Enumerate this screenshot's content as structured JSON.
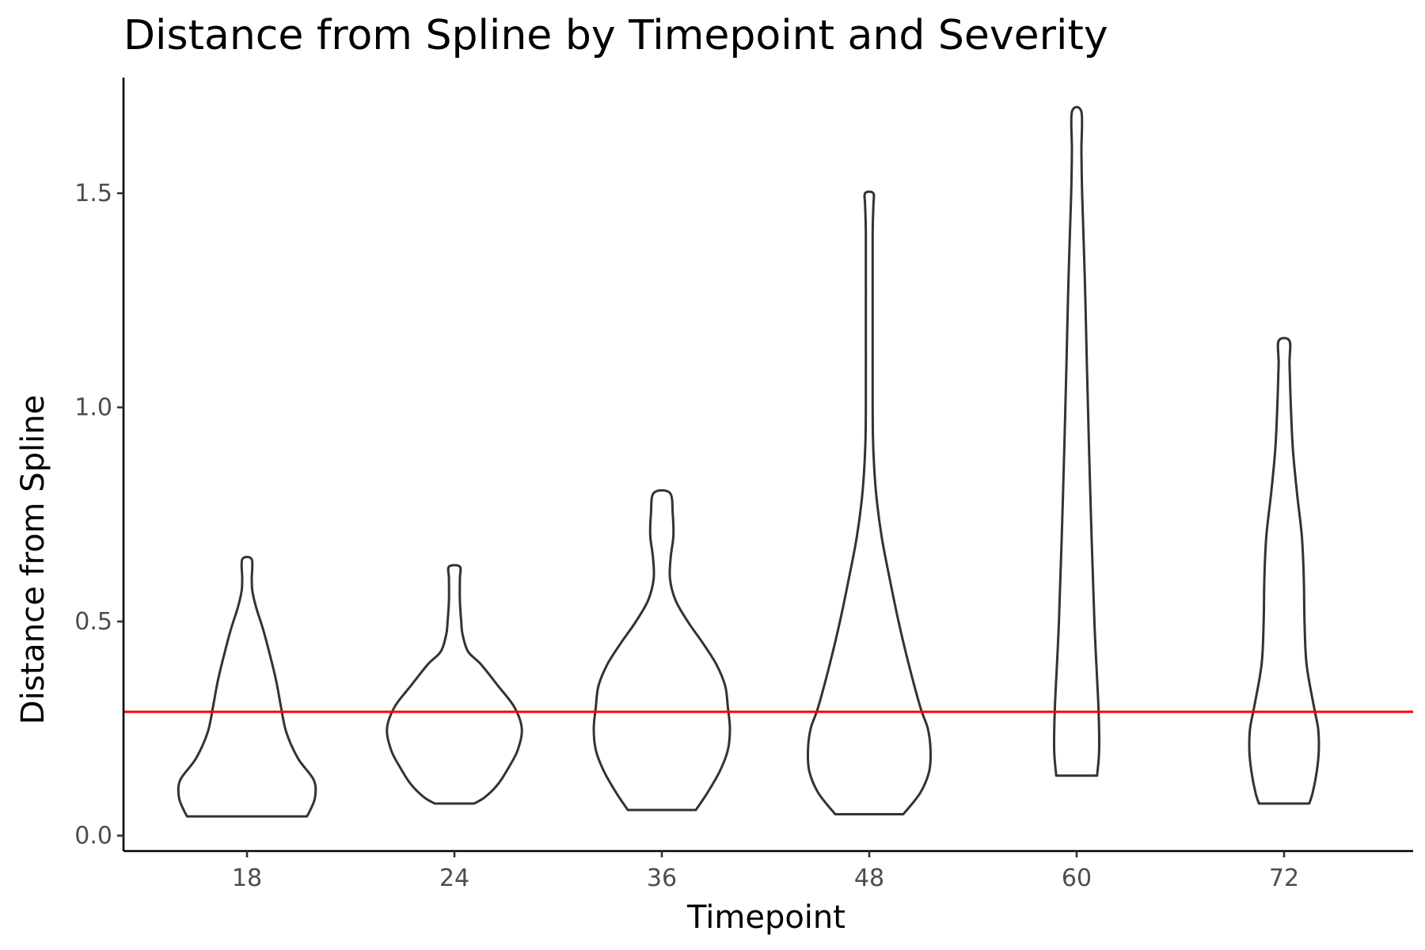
{
  "chart_data": {
    "type": "violin",
    "title": "Distance from Spline by Timepoint and Severity",
    "xlabel": "Timepoint",
    "ylabel": "Distance from Spline",
    "categories": [
      "18",
      "24",
      "36",
      "48",
      "60",
      "72"
    ],
    "yticks": [
      0.0,
      0.5,
      1.0,
      1.5
    ],
    "ytick_labels": [
      "0.0",
      "0.5",
      "1.0",
      "1.5"
    ],
    "ylim": [
      -0.036,
      1.77
    ],
    "grid": false,
    "legend": "none",
    "reference_line": {
      "y": 0.289,
      "color": "#ff0000"
    },
    "violin_color": "#333333",
    "violins": [
      {
        "category": "18",
        "min": 0.045,
        "max": 0.645,
        "profile": [
          [
            0.045,
            0.88
          ],
          [
            0.06,
            0.93
          ],
          [
            0.09,
            1.0
          ],
          [
            0.13,
            0.98
          ],
          [
            0.18,
            0.75
          ],
          [
            0.24,
            0.58
          ],
          [
            0.3,
            0.5
          ],
          [
            0.36,
            0.43
          ],
          [
            0.42,
            0.34
          ],
          [
            0.48,
            0.24
          ],
          [
            0.53,
            0.14
          ],
          [
            0.57,
            0.08
          ],
          [
            0.6,
            0.07
          ],
          [
            0.645,
            0.07
          ]
        ]
      },
      {
        "category": "24",
        "min": 0.075,
        "max": 0.628,
        "profile": [
          [
            0.075,
            0.29
          ],
          [
            0.09,
            0.45
          ],
          [
            0.12,
            0.64
          ],
          [
            0.16,
            0.8
          ],
          [
            0.2,
            0.93
          ],
          [
            0.25,
            0.99
          ],
          [
            0.3,
            0.88
          ],
          [
            0.35,
            0.64
          ],
          [
            0.4,
            0.39
          ],
          [
            0.43,
            0.2
          ],
          [
            0.47,
            0.12
          ],
          [
            0.5,
            0.1
          ],
          [
            0.55,
            0.08
          ],
          [
            0.6,
            0.08
          ],
          [
            0.628,
            0.08
          ]
        ]
      },
      {
        "category": "36",
        "min": 0.06,
        "max": 0.8,
        "profile": [
          [
            0.06,
            0.5
          ],
          [
            0.1,
            0.67
          ],
          [
            0.15,
            0.85
          ],
          [
            0.2,
            0.97
          ],
          [
            0.25,
            1.0
          ],
          [
            0.3,
            0.97
          ],
          [
            0.35,
            0.93
          ],
          [
            0.4,
            0.8
          ],
          [
            0.45,
            0.6
          ],
          [
            0.5,
            0.38
          ],
          [
            0.55,
            0.2
          ],
          [
            0.6,
            0.12
          ],
          [
            0.65,
            0.13
          ],
          [
            0.7,
            0.17
          ],
          [
            0.75,
            0.16
          ],
          [
            0.8,
            0.12
          ]
        ]
      },
      {
        "category": "48",
        "min": 0.05,
        "max": 1.5,
        "profile": [
          [
            0.05,
            0.5
          ],
          [
            0.1,
            0.75
          ],
          [
            0.15,
            0.88
          ],
          [
            0.2,
            0.9
          ],
          [
            0.25,
            0.86
          ],
          [
            0.3,
            0.75
          ],
          [
            0.4,
            0.58
          ],
          [
            0.5,
            0.43
          ],
          [
            0.6,
            0.3
          ],
          [
            0.7,
            0.18
          ],
          [
            0.8,
            0.1
          ],
          [
            0.9,
            0.06
          ],
          [
            1.0,
            0.05
          ],
          [
            1.2,
            0.05
          ],
          [
            1.4,
            0.05
          ],
          [
            1.47,
            0.06
          ],
          [
            1.5,
            0.06
          ]
        ]
      },
      {
        "category": "60",
        "min": 0.14,
        "max": 1.69,
        "profile": [
          [
            0.14,
            0.3
          ],
          [
            0.2,
            0.33
          ],
          [
            0.3,
            0.32
          ],
          [
            0.5,
            0.26
          ],
          [
            0.8,
            0.2
          ],
          [
            1.1,
            0.15
          ],
          [
            1.3,
            0.12
          ],
          [
            1.5,
            0.08
          ],
          [
            1.6,
            0.07
          ],
          [
            1.69,
            0.07
          ]
        ]
      },
      {
        "category": "72",
        "min": 0.075,
        "max": 1.155,
        "profile": [
          [
            0.075,
            0.37
          ],
          [
            0.1,
            0.42
          ],
          [
            0.15,
            0.48
          ],
          [
            0.2,
            0.51
          ],
          [
            0.25,
            0.5
          ],
          [
            0.3,
            0.44
          ],
          [
            0.4,
            0.33
          ],
          [
            0.5,
            0.3
          ],
          [
            0.6,
            0.29
          ],
          [
            0.7,
            0.26
          ],
          [
            0.8,
            0.19
          ],
          [
            0.9,
            0.13
          ],
          [
            1.0,
            0.1
          ],
          [
            1.1,
            0.08
          ],
          [
            1.155,
            0.08
          ]
        ]
      }
    ]
  }
}
